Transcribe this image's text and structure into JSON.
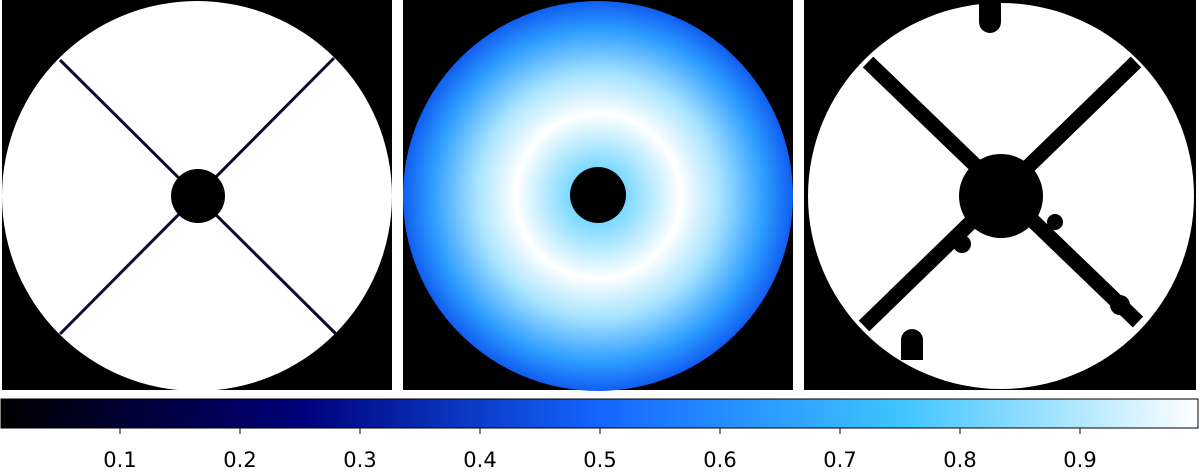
{
  "chart_data": {
    "type": "colorbar",
    "xlim": [
      0,
      1
    ],
    "xticks": [
      0.1,
      0.2,
      0.3,
      0.4,
      0.5,
      0.6,
      0.7,
      0.8,
      0.9
    ],
    "colors": [
      "#000000",
      "#00007a",
      "#1466ff",
      "#3ec4ff",
      "#ffffff"
    ]
  }
}
